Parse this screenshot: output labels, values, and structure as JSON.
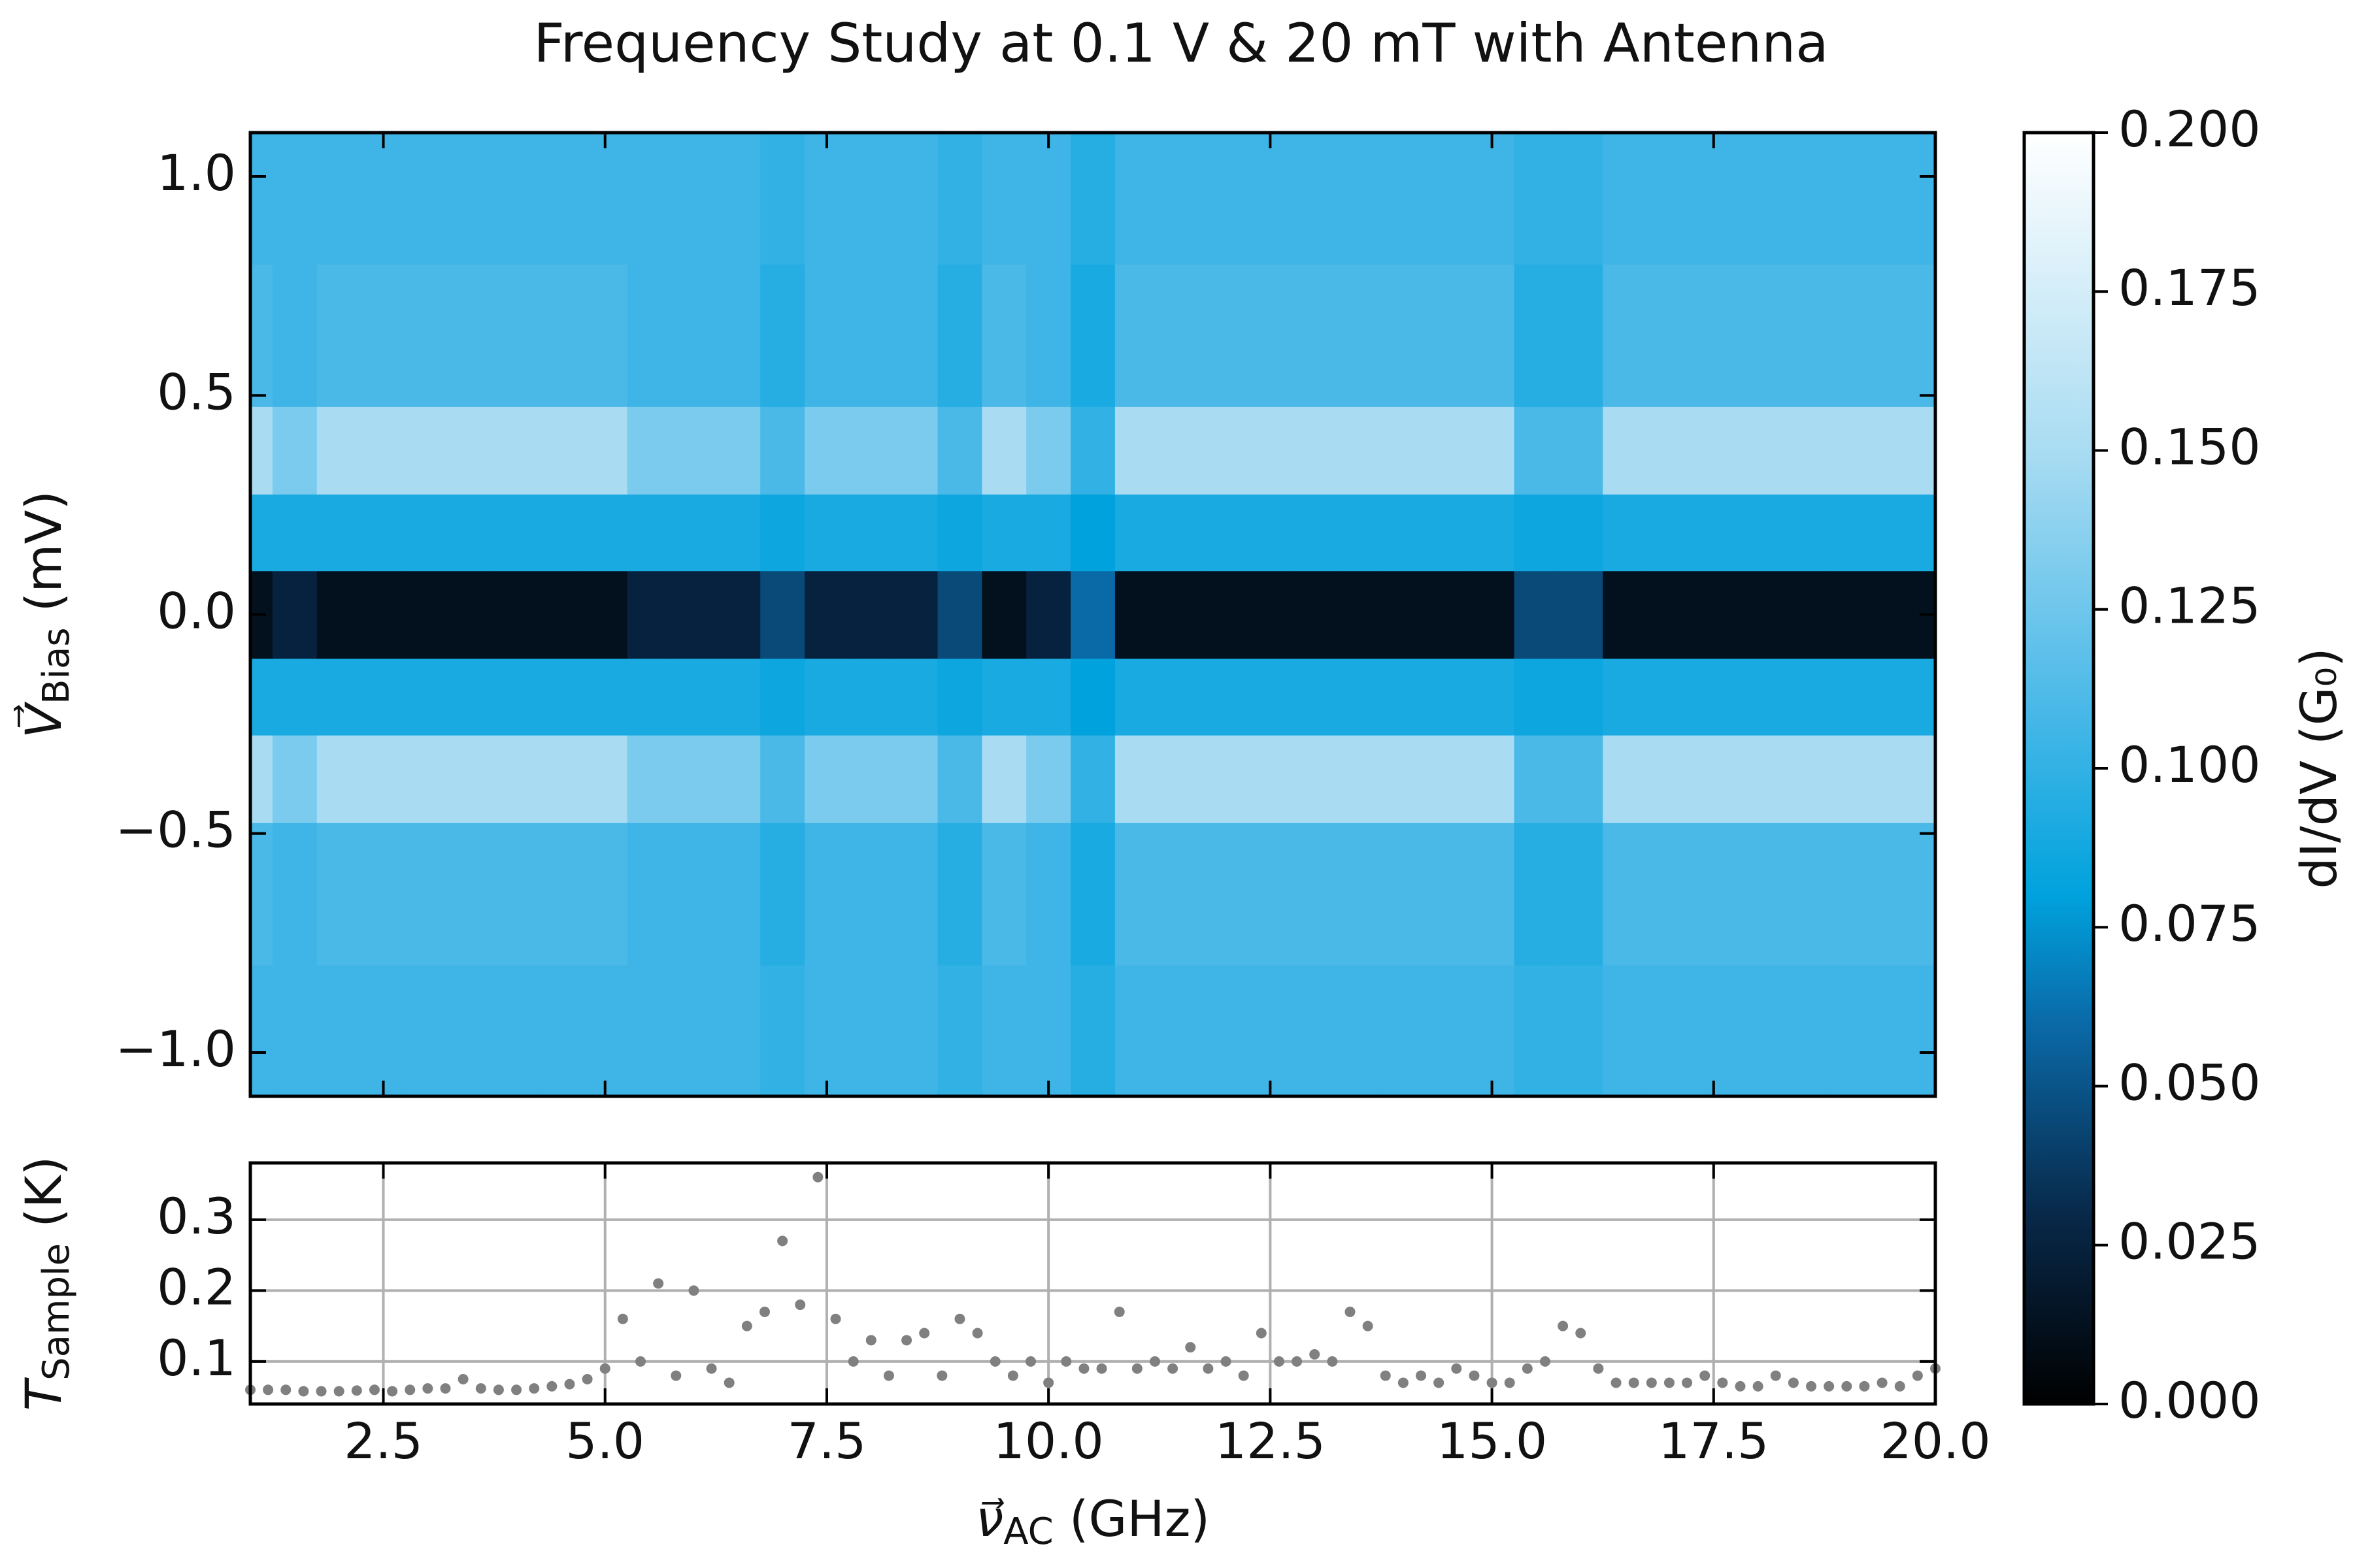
{
  "chart_data": [
    {
      "type": "heatmap",
      "title": "Frequency Study at 0.1 V & 20 mT with Antenna",
      "ylabel": {
        "main": "V⃗",
        "sub": "Bias",
        "rest": " (mV)"
      },
      "x": [
        1.0,
        1.5,
        2.0,
        2.5,
        3.0,
        3.5,
        4.0,
        4.5,
        5.0,
        5.5,
        6.0,
        6.5,
        7.0,
        7.5,
        8.0,
        8.5,
        9.0,
        9.5,
        10.0,
        10.5,
        11.0,
        11.5,
        12.0,
        12.5,
        13.0,
        13.5,
        14.0,
        14.5,
        15.0,
        15.5,
        16.0,
        16.5,
        17.0,
        17.5,
        18.0,
        18.5,
        19.0,
        19.5,
        20.0
      ],
      "y": [
        -1.0,
        -0.6,
        -0.35,
        -0.2,
        0,
        0.2,
        0.35,
        0.6,
        1.0
      ],
      "z": [
        [
          0.105,
          0.105,
          0.105,
          0.105,
          0.105,
          0.105,
          0.105,
          0.105,
          0.105,
          0.105,
          0.105,
          0.105,
          0.1,
          0.105,
          0.105,
          0.105,
          0.1,
          0.105,
          0.105,
          0.095,
          0.105,
          0.105,
          0.105,
          0.105,
          0.105,
          0.105,
          0.105,
          0.105,
          0.105,
          0.1,
          0.1,
          0.105,
          0.105,
          0.105,
          0.105,
          0.105,
          0.105,
          0.105,
          0.105
        ],
        [
          0.11,
          0.105,
          0.11,
          0.11,
          0.11,
          0.11,
          0.11,
          0.11,
          0.11,
          0.105,
          0.105,
          0.105,
          0.095,
          0.105,
          0.105,
          0.105,
          0.095,
          0.11,
          0.105,
          0.09,
          0.11,
          0.11,
          0.11,
          0.11,
          0.11,
          0.11,
          0.11,
          0.11,
          0.11,
          0.095,
          0.095,
          0.11,
          0.11,
          0.11,
          0.11,
          0.11,
          0.11,
          0.11,
          0.11
        ],
        [
          0.15,
          0.13,
          0.15,
          0.15,
          0.15,
          0.15,
          0.15,
          0.15,
          0.15,
          0.13,
          0.13,
          0.13,
          0.11,
          0.13,
          0.13,
          0.13,
          0.11,
          0.15,
          0.13,
          0.1,
          0.15,
          0.15,
          0.15,
          0.15,
          0.15,
          0.15,
          0.15,
          0.15,
          0.15,
          0.11,
          0.11,
          0.15,
          0.15,
          0.15,
          0.15,
          0.15,
          0.15,
          0.15,
          0.15
        ],
        [
          0.09,
          0.09,
          0.09,
          0.09,
          0.09,
          0.09,
          0.09,
          0.09,
          0.09,
          0.09,
          0.09,
          0.09,
          0.085,
          0.09,
          0.09,
          0.09,
          0.085,
          0.09,
          0.09,
          0.08,
          0.09,
          0.09,
          0.09,
          0.09,
          0.09,
          0.09,
          0.09,
          0.09,
          0.09,
          0.085,
          0.085,
          0.09,
          0.09,
          0.09,
          0.09,
          0.09,
          0.09,
          0.09,
          0.09
        ],
        [
          0.012,
          0.025,
          0.012,
          0.012,
          0.012,
          0.012,
          0.012,
          0.012,
          0.012,
          0.025,
          0.025,
          0.025,
          0.045,
          0.025,
          0.025,
          0.025,
          0.045,
          0.012,
          0.025,
          0.06,
          0.012,
          0.012,
          0.012,
          0.012,
          0.012,
          0.012,
          0.012,
          0.012,
          0.012,
          0.045,
          0.045,
          0.012,
          0.012,
          0.012,
          0.012,
          0.012,
          0.012,
          0.012,
          0.012
        ],
        [
          0.09,
          0.09,
          0.09,
          0.09,
          0.09,
          0.09,
          0.09,
          0.09,
          0.09,
          0.09,
          0.09,
          0.09,
          0.085,
          0.09,
          0.09,
          0.09,
          0.085,
          0.09,
          0.09,
          0.08,
          0.09,
          0.09,
          0.09,
          0.09,
          0.09,
          0.09,
          0.09,
          0.09,
          0.09,
          0.085,
          0.085,
          0.09,
          0.09,
          0.09,
          0.09,
          0.09,
          0.09,
          0.09,
          0.09
        ],
        [
          0.15,
          0.13,
          0.15,
          0.15,
          0.15,
          0.15,
          0.15,
          0.15,
          0.15,
          0.13,
          0.13,
          0.13,
          0.11,
          0.13,
          0.13,
          0.13,
          0.11,
          0.15,
          0.13,
          0.1,
          0.15,
          0.15,
          0.15,
          0.15,
          0.15,
          0.15,
          0.15,
          0.15,
          0.15,
          0.11,
          0.11,
          0.15,
          0.15,
          0.15,
          0.15,
          0.15,
          0.15,
          0.15,
          0.15
        ],
        [
          0.11,
          0.105,
          0.11,
          0.11,
          0.11,
          0.11,
          0.11,
          0.11,
          0.11,
          0.105,
          0.105,
          0.105,
          0.095,
          0.105,
          0.105,
          0.105,
          0.095,
          0.11,
          0.105,
          0.09,
          0.11,
          0.11,
          0.11,
          0.11,
          0.11,
          0.11,
          0.11,
          0.11,
          0.11,
          0.095,
          0.095,
          0.11,
          0.11,
          0.11,
          0.11,
          0.11,
          0.11,
          0.11,
          0.11
        ],
        [
          0.105,
          0.105,
          0.105,
          0.105,
          0.105,
          0.105,
          0.105,
          0.105,
          0.105,
          0.105,
          0.105,
          0.105,
          0.1,
          0.105,
          0.105,
          0.105,
          0.1,
          0.105,
          0.105,
          0.095,
          0.105,
          0.105,
          0.105,
          0.105,
          0.105,
          0.105,
          0.105,
          0.105,
          0.105,
          0.1,
          0.1,
          0.105,
          0.105,
          0.105,
          0.105,
          0.105,
          0.105,
          0.105,
          0.105
        ]
      ],
      "xlim": [
        1,
        20
      ],
      "ylim": [
        -1.1,
        1.1
      ],
      "yticks": [
        {
          "value": -1,
          "label": "−1.0"
        },
        {
          "value": -0.5,
          "label": "−0.5"
        },
        {
          "value": 0,
          "label": "0.0"
        },
        0.5,
        {
          "value": 1,
          "label": "1.0"
        }
      ],
      "colorbar": {
        "label": "dI/dV (G₀)",
        "lim": [
          0,
          0.2
        ],
        "ticks": [
          {
            "value": 0,
            "label": "0.000"
          },
          {
            "value": 0.025,
            "label": "0.025"
          },
          {
            "value": 0.05,
            "label": "0.050"
          },
          {
            "value": 0.075,
            "label": "0.075"
          },
          {
            "value": 0.1,
            "label": "0.100"
          },
          {
            "value": 0.125,
            "label": "0.125"
          },
          {
            "value": 0.15,
            "label": "0.150"
          },
          {
            "value": 0.175,
            "label": "0.175"
          },
          {
            "value": 0.2,
            "label": "0.200"
          }
        ]
      },
      "colormap": [
        {
          "value": 0,
          "color": "#000000"
        },
        {
          "value": 0.03,
          "color": "#08294a"
        },
        {
          "value": 0.06,
          "color": "#0a6aa8"
        },
        {
          "value": 0.08,
          "color": "#00a2dd"
        },
        {
          "value": 0.11,
          "color": "#4bb9e8"
        },
        {
          "value": 0.15,
          "color": "#a9dcf2"
        },
        {
          "value": 0.2,
          "color": "#ffffff"
        }
      ]
    },
    {
      "type": "scatter",
      "xlabel": {
        "main": "ν⃗",
        "sub": "AC",
        "rest": " (GHz)"
      },
      "ylabel": {
        "main": "T",
        "sub": "Sample",
        "rest": " (K)"
      },
      "color": "#808080",
      "grid": true,
      "x": [
        1.0,
        1.2,
        1.4,
        1.6,
        1.8,
        2.0,
        2.2,
        2.4,
        2.6,
        2.8,
        3.0,
        3.2,
        3.4,
        3.6,
        3.8,
        4.0,
        4.2,
        4.4,
        4.6,
        4.8,
        5.0,
        5.2,
        5.4,
        5.6,
        5.8,
        6.0,
        6.2,
        6.4,
        6.6,
        6.8,
        7.0,
        7.2,
        7.4,
        7.6,
        7.8,
        8.0,
        8.2,
        8.4,
        8.6,
        8.8,
        9.0,
        9.2,
        9.4,
        9.6,
        9.8,
        10.0,
        10.2,
        10.4,
        10.6,
        10.8,
        11.0,
        11.2,
        11.4,
        11.6,
        11.8,
        12.0,
        12.2,
        12.4,
        12.6,
        12.8,
        13.0,
        13.2,
        13.4,
        13.6,
        13.8,
        14.0,
        14.2,
        14.4,
        14.6,
        14.8,
        15.0,
        15.2,
        15.4,
        15.6,
        15.8,
        16.0,
        16.2,
        16.4,
        16.6,
        16.8,
        17.0,
        17.2,
        17.4,
        17.6,
        17.8,
        18.0,
        18.2,
        18.4,
        18.6,
        18.8,
        19.0,
        19.2,
        19.4,
        19.6,
        19.8,
        20.0
      ],
      "values": [
        0.06,
        0.06,
        0.06,
        0.058,
        0.058,
        0.058,
        0.059,
        0.06,
        0.058,
        0.06,
        0.062,
        0.062,
        0.075,
        0.062,
        0.06,
        0.06,
        0.062,
        0.065,
        0.068,
        0.075,
        0.09,
        0.16,
        0.1,
        0.21,
        0.08,
        0.2,
        0.09,
        0.07,
        0.15,
        0.17,
        0.27,
        0.18,
        0.36,
        0.16,
        0.1,
        0.13,
        0.08,
        0.13,
        0.14,
        0.08,
        0.16,
        0.14,
        0.1,
        0.08,
        0.1,
        0.07,
        0.1,
        0.09,
        0.09,
        0.17,
        0.09,
        0.1,
        0.09,
        0.12,
        0.09,
        0.1,
        0.08,
        0.14,
        0.1,
        0.1,
        0.11,
        0.1,
        0.17,
        0.15,
        0.08,
        0.07,
        0.08,
        0.07,
        0.09,
        0.08,
        0.07,
        0.07,
        0.09,
        0.1,
        0.15,
        0.14,
        0.09,
        0.07,
        0.07,
        0.07,
        0.07,
        0.07,
        0.08,
        0.07,
        0.065,
        0.065,
        0.08,
        0.07,
        0.065,
        0.065,
        0.065,
        0.065,
        0.07,
        0.065,
        0.08,
        0.09
      ],
      "xlim": [
        1,
        20
      ],
      "ylim": [
        0.04,
        0.38
      ],
      "xticks": [
        2.5,
        {
          "value": 5,
          "label": "5.0"
        },
        7.5,
        {
          "value": 10,
          "label": "10.0"
        },
        12.5,
        {
          "value": 15,
          "label": "15.0"
        },
        17.5,
        {
          "value": 20,
          "label": "20.0"
        }
      ],
      "yticks": [
        0.1,
        0.2,
        0.3
      ]
    }
  ]
}
